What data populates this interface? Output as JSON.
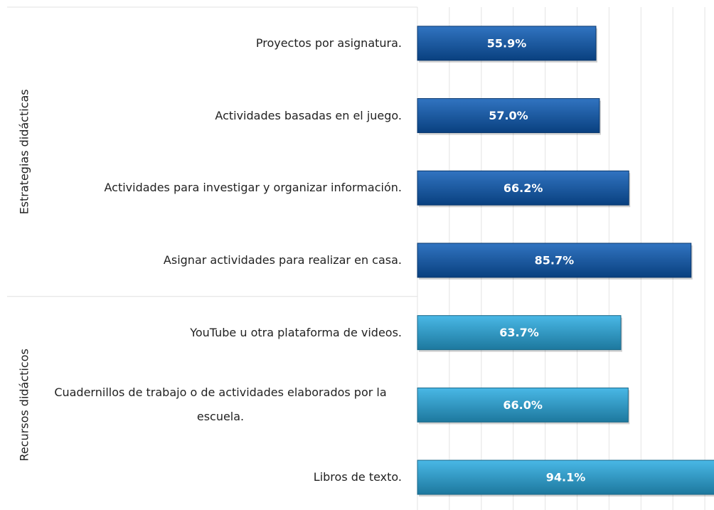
{
  "chart_data": {
    "type": "bar",
    "orientation": "horizontal",
    "xlim": [
      0,
      100
    ],
    "xticks": [
      0,
      10,
      20,
      30,
      40,
      50,
      60,
      70,
      80,
      90,
      100
    ],
    "grid": true,
    "groups": [
      {
        "name": "Estrategias didácticas",
        "color": "#0d5cb6",
        "categories": [
          "Proyectos por asignatura.",
          "Actividades basadas en el juego.",
          "Actividades para investigar y organizar información.",
          "Asignar actividades para realizar en casa."
        ],
        "values": [
          55.9,
          57.0,
          66.2,
          85.7
        ],
        "value_labels": [
          "55.9%",
          "57.0%",
          "66.2%",
          "85.7%"
        ]
      },
      {
        "name": "Recursos didácticos",
        "color": "#29abe2",
        "categories": [
          "YouTube u otra plataforma de videos.",
          "Cuadernillos de trabajo o de actividades elaborados por la escuela.",
          "Libros de texto."
        ],
        "values": [
          63.7,
          66.0,
          94.1
        ],
        "value_labels": [
          "63.7%",
          "66.0%",
          "94.1%"
        ]
      }
    ]
  }
}
